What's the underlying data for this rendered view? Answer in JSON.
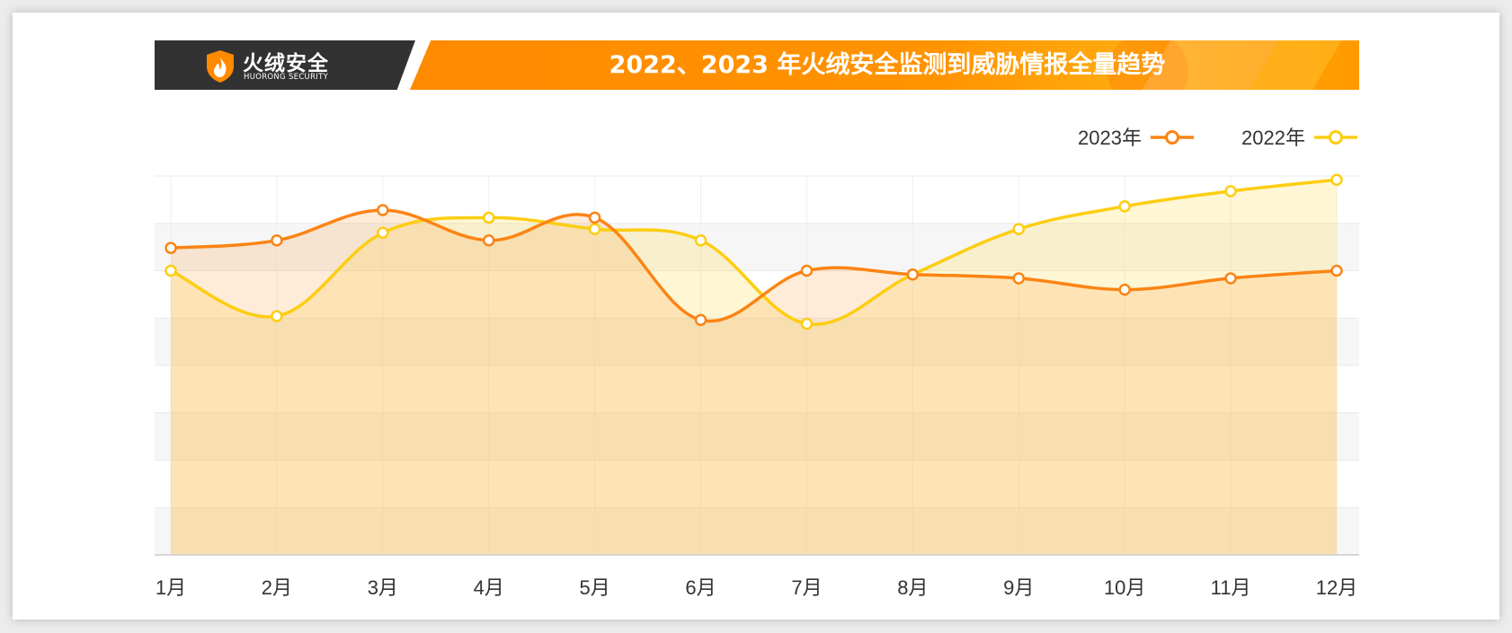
{
  "header": {
    "logo_cn": "火绒安全",
    "logo_en": "HUORONG SECURITY"
  },
  "colors": {
    "series_2023": "#fb8414",
    "series_2022": "#fdcd12",
    "banner_orange": "#ff8a00",
    "banner_dark": "#323232"
  },
  "chart_data": {
    "type": "area",
    "title": "2022、2023 年火绒安全监测到威胁情报全量趋势",
    "xlabel": "",
    "ylabel": "",
    "categories": [
      "1月",
      "2月",
      "3月",
      "4月",
      "5月",
      "6月",
      "7月",
      "8月",
      "9月",
      "10月",
      "11月",
      "12月"
    ],
    "ylim": [
      0,
      100
    ],
    "grid": true,
    "y_tick_labels_shown": false,
    "legend_position": "top-right",
    "series": [
      {
        "name": "2023年",
        "values": [
          81,
          83,
          91,
          83,
          89,
          62,
          75,
          74,
          73,
          70,
          73,
          75
        ]
      },
      {
        "name": "2022年",
        "values": [
          75,
          63,
          85,
          89,
          86,
          83,
          61,
          74,
          86,
          92,
          96,
          99
        ]
      }
    ]
  }
}
